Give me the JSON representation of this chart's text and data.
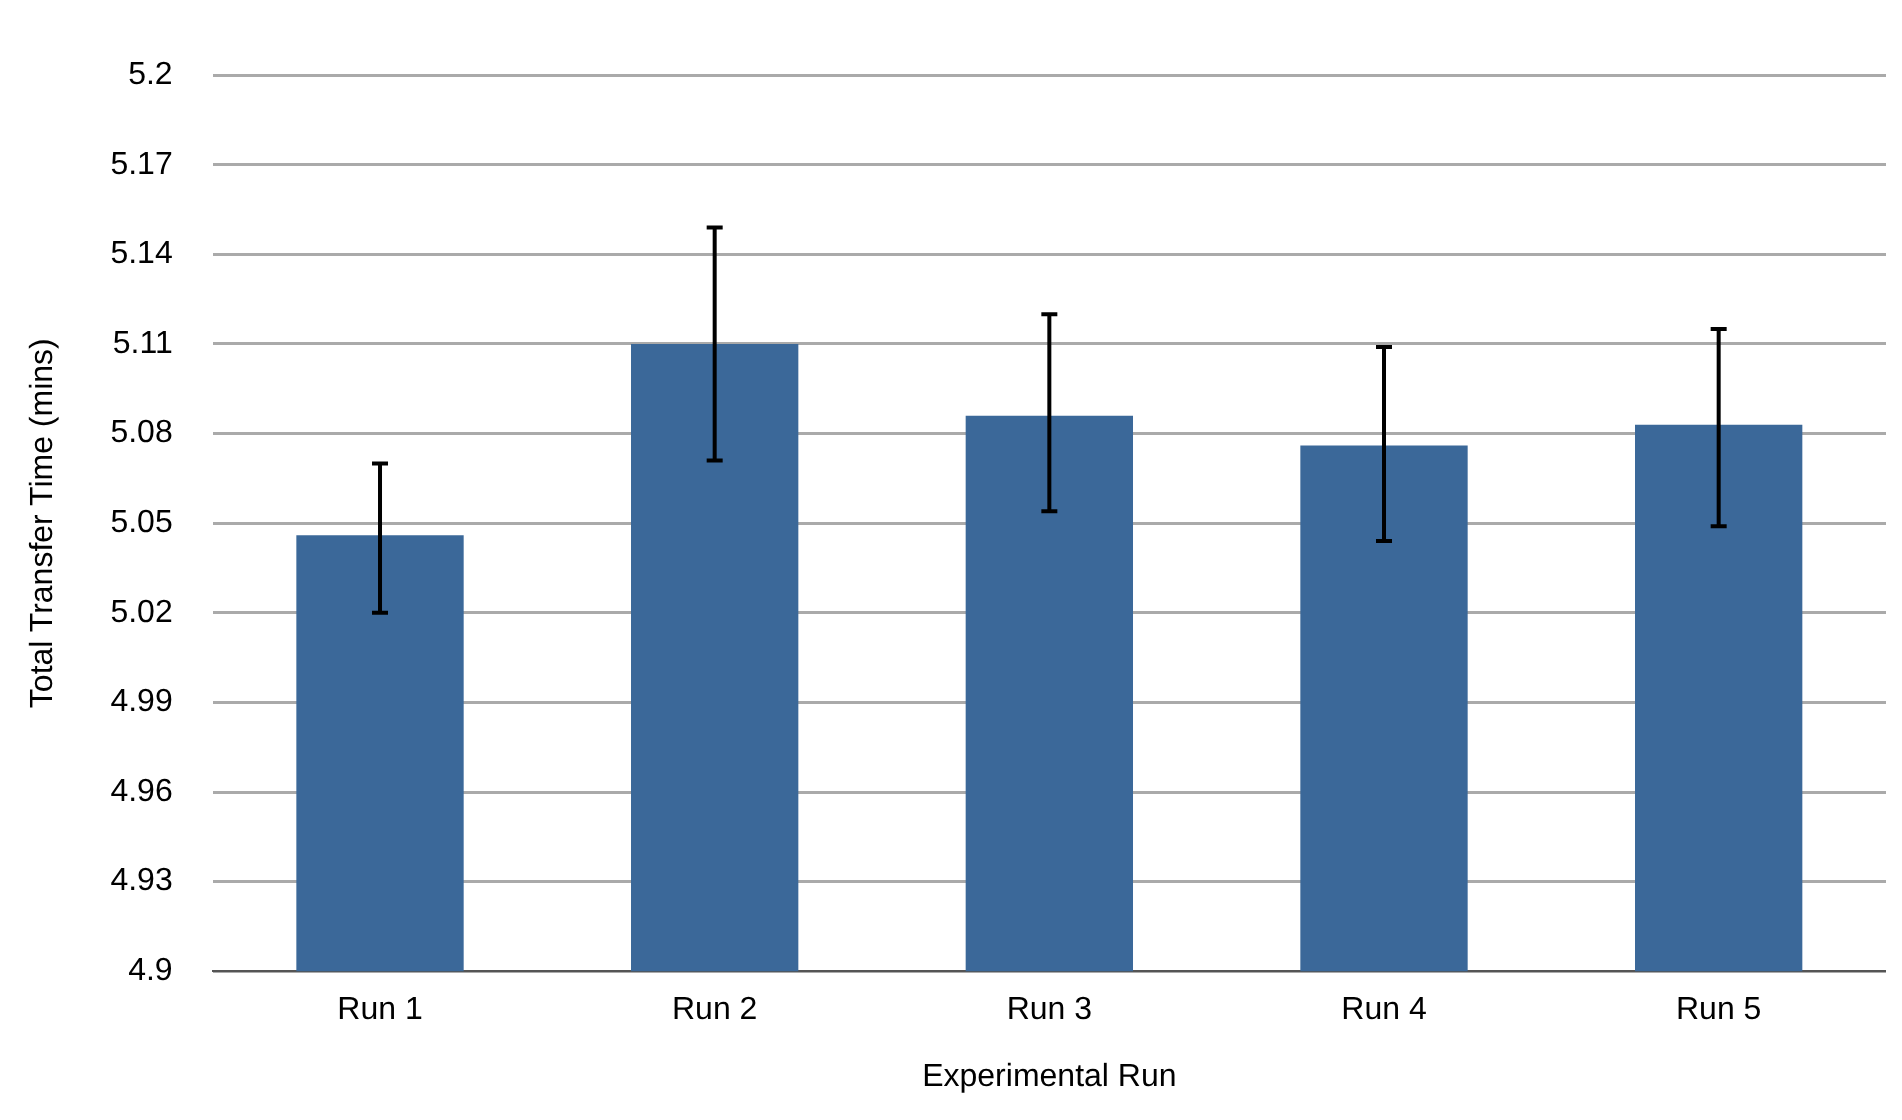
{
  "chart_data": {
    "type": "bar",
    "xlabel": "Experimental Run",
    "ylabel": "Total Transfer Time (mins)",
    "categories": [
      "Run 1",
      "Run 2",
      "Run 3",
      "Run 4",
      "Run 5"
    ],
    "values": [
      5.046,
      5.11,
      5.086,
      5.076,
      5.083
    ],
    "errors": [
      [
        5.02,
        5.07
      ],
      [
        5.071,
        5.149
      ],
      [
        5.054,
        5.12
      ],
      [
        5.044,
        5.109
      ],
      [
        5.049,
        5.115
      ]
    ],
    "color": "#3b6899",
    "ylim": [
      4.9,
      5.2
    ],
    "yticks": [
      4.9,
      4.93,
      4.96,
      4.99,
      5.02,
      5.05,
      5.08,
      5.11,
      5.14,
      5.17,
      5.2
    ],
    "grid": "y",
    "legend": false
  }
}
